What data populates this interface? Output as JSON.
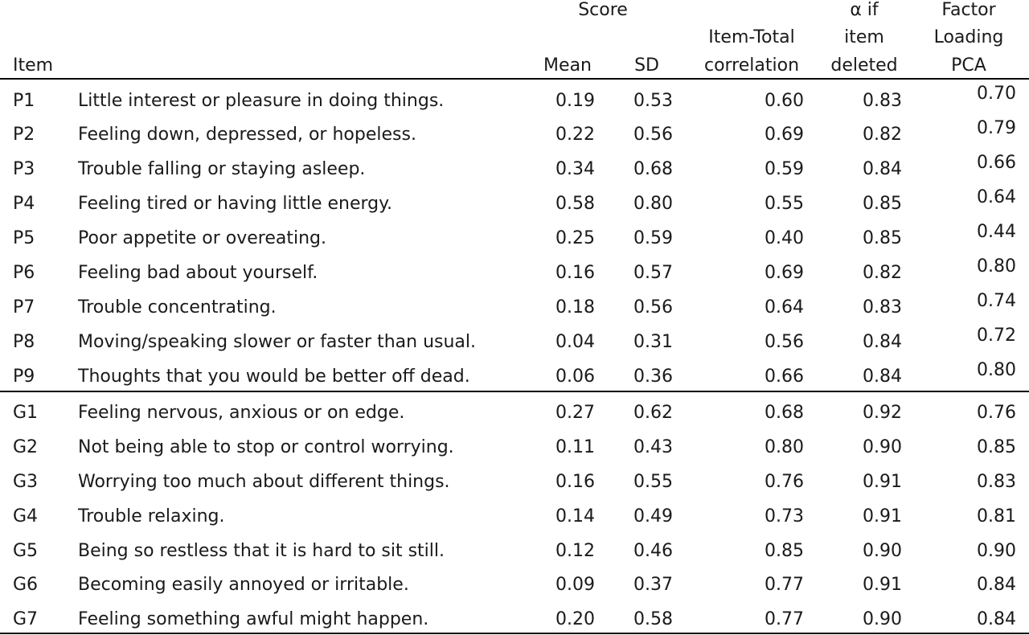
{
  "header": {
    "score_group": "Score",
    "item": "Item",
    "mean": "Mean",
    "sd": "SD",
    "item_total": [
      "Item-Total",
      "correlation"
    ],
    "alpha_if_deleted": [
      "α if",
      "item",
      "deleted"
    ],
    "factor_loading": [
      "Factor",
      "Loading",
      "PCA"
    ]
  },
  "rows": [
    {
      "id": "P1",
      "text": "Little interest or pleasure in doing things.",
      "mean": "0.19",
      "sd": "0.53",
      "itc": "0.60",
      "alpha": "0.83",
      "loading": "0.70"
    },
    {
      "id": "P2",
      "text": "Feeling down, depressed, or hopeless.",
      "mean": "0.22",
      "sd": "0.56",
      "itc": "0.69",
      "alpha": "0.82",
      "loading": "0.79"
    },
    {
      "id": "P3",
      "text": "Trouble falling or staying asleep.",
      "mean": "0.34",
      "sd": "0.68",
      "itc": "0.59",
      "alpha": "0.84",
      "loading": "0.66"
    },
    {
      "id": "P4",
      "text": "Feeling tired or having little energy.",
      "mean": "0.58",
      "sd": "0.80",
      "itc": "0.55",
      "alpha": "0.85",
      "loading": "0.64"
    },
    {
      "id": "P5",
      "text": "Poor appetite or overeating.",
      "mean": "0.25",
      "sd": "0.59",
      "itc": "0.40",
      "alpha": "0.85",
      "loading": "0.44"
    },
    {
      "id": "P6",
      "text": "Feeling bad about yourself.",
      "mean": "0.16",
      "sd": "0.57",
      "itc": "0.69",
      "alpha": "0.82",
      "loading": "0.80"
    },
    {
      "id": "P7",
      "text": "Trouble concentrating.",
      "mean": "0.18",
      "sd": "0.56",
      "itc": "0.64",
      "alpha": "0.83",
      "loading": "0.74"
    },
    {
      "id": "P8",
      "text": "Moving/speaking slower or faster than usual.",
      "mean": "0.04",
      "sd": "0.31",
      "itc": "0.56",
      "alpha": "0.84",
      "loading": "0.72"
    },
    {
      "id": "P9",
      "text": "Thoughts that you would be better off dead.",
      "mean": "0.06",
      "sd": "0.36",
      "itc": "0.66",
      "alpha": "0.84",
      "loading": "0.80"
    },
    {
      "id": "G1",
      "text": "Feeling nervous, anxious or on edge.",
      "mean": "0.27",
      "sd": "0.62",
      "itc": "0.68",
      "alpha": "0.92",
      "loading": "0.76"
    },
    {
      "id": "G2",
      "text": "Not being able to stop or control worrying.",
      "mean": "0.11",
      "sd": "0.43",
      "itc": "0.80",
      "alpha": "0.90",
      "loading": "0.85"
    },
    {
      "id": "G3",
      "text": "Worrying too much about different things.",
      "mean": "0.16",
      "sd": "0.55",
      "itc": "0.76",
      "alpha": "0.91",
      "loading": "0.83"
    },
    {
      "id": "G4",
      "text": "Trouble relaxing.",
      "mean": "0.14",
      "sd": "0.49",
      "itc": "0.73",
      "alpha": "0.91",
      "loading": "0.81"
    },
    {
      "id": "G5",
      "text": "Being so restless that it is hard to sit still.",
      "mean": "0.12",
      "sd": "0.46",
      "itc": "0.85",
      "alpha": "0.90",
      "loading": "0.90"
    },
    {
      "id": "G6",
      "text": "Becoming easily annoyed or irritable.",
      "mean": "0.09",
      "sd": "0.37",
      "itc": "0.77",
      "alpha": "0.91",
      "loading": "0.84"
    },
    {
      "id": "G7",
      "text": "Feeling something awful might happen.",
      "mean": "0.20",
      "sd": "0.58",
      "itc": "0.77",
      "alpha": "0.90",
      "loading": "0.84"
    }
  ]
}
